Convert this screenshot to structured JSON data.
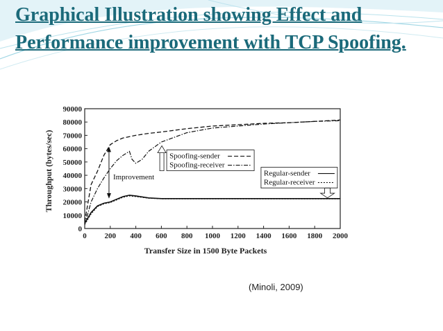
{
  "slide": {
    "title": "Graphical Illustration showing Effect and Performance improvement with TCP Spoofing.",
    "citation": "(Minoli, 2009)",
    "accent_color": "#1b6a7a",
    "wave_color": "#7fc7d9"
  },
  "chart_data": {
    "type": "line",
    "title": "",
    "xlabel": "Transfer Size in 1500 Byte Packets",
    "ylabel": "Throughput (bytes/sec)",
    "xlim": [
      0,
      2000
    ],
    "ylim": [
      0,
      90000
    ],
    "xticks": [
      "0",
      "200",
      "400",
      "600",
      "800",
      "1000",
      "1200",
      "1400",
      "1600",
      "1800",
      "2000"
    ],
    "yticks": [
      "0",
      "10000",
      "20000",
      "30000",
      "40000",
      "50000",
      "60000",
      "70000",
      "80000",
      "90000"
    ],
    "grid": false,
    "series": [
      {
        "name": "Spoofing-sender",
        "style": "dashed",
        "x": [
          0,
          50,
          100,
          150,
          200,
          250,
          300,
          400,
          500,
          600,
          800,
          1000,
          1200,
          1400,
          1600,
          1800,
          2000
        ],
        "y": [
          5000,
          33000,
          43000,
          55000,
          63000,
          66000,
          68000,
          70000,
          71500,
          72500,
          75000,
          77000,
          78000,
          79000,
          79500,
          80500,
          81500
        ]
      },
      {
        "name": "Spoofing-receiver",
        "style": "dash-dot",
        "x": [
          0,
          50,
          100,
          150,
          200,
          250,
          300,
          350,
          370,
          400,
          450,
          500,
          600,
          800,
          1000,
          1200,
          1400,
          1600,
          1800,
          2000
        ],
        "y": [
          3000,
          20000,
          30000,
          38000,
          45000,
          51000,
          55000,
          58000,
          52000,
          49000,
          52000,
          58000,
          65000,
          72000,
          75500,
          77000,
          78500,
          79500,
          80500,
          81000
        ]
      },
      {
        "name": "Regular-sender",
        "style": "solid",
        "x": [
          0,
          50,
          100,
          150,
          200,
          250,
          300,
          350,
          400,
          500,
          600,
          800,
          1000,
          1200,
          1400,
          1600,
          1800,
          2000
        ],
        "y": [
          4000,
          12000,
          17000,
          19000,
          20000,
          22000,
          24000,
          25000,
          24500,
          23000,
          22500,
          22500,
          22500,
          22500,
          22500,
          22500,
          22500,
          22500
        ]
      },
      {
        "name": "Regular-receiver",
        "style": "dotted",
        "x": [
          0,
          50,
          100,
          150,
          200,
          250,
          300,
          350,
          400,
          500,
          600,
          800,
          1000,
          1200,
          1400,
          1600,
          1800,
          2000
        ],
        "y": [
          3000,
          11000,
          16500,
          18500,
          19500,
          21500,
          23500,
          24500,
          24000,
          22800,
          22300,
          22300,
          22300,
          22300,
          22300,
          22300,
          22300,
          22300
        ]
      }
    ],
    "annotations": [
      {
        "text": "Improvement"
      }
    ]
  }
}
